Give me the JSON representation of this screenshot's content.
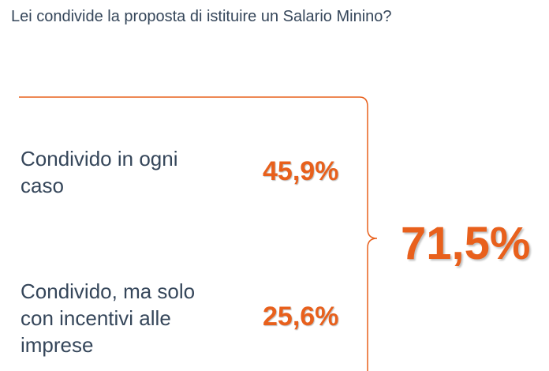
{
  "question": "Lei condivide la proposta di istituire un Salario Minino?",
  "accent_color": "#e8601c",
  "text_color": "#35465a",
  "chart_data": {
    "type": "table",
    "title": "Lei condivide la proposta di istituire un Salario Minino?",
    "rows": [
      {
        "label": "Condivido in ogni\ncaso",
        "value": 45.9,
        "display": "45,9%"
      },
      {
        "label": "Condivido, ma solo\ncon incentivi alle\nimprese",
        "value": 25.6,
        "display": "25,6%"
      }
    ],
    "total": {
      "value": 71.5,
      "display": "71,5%"
    }
  }
}
